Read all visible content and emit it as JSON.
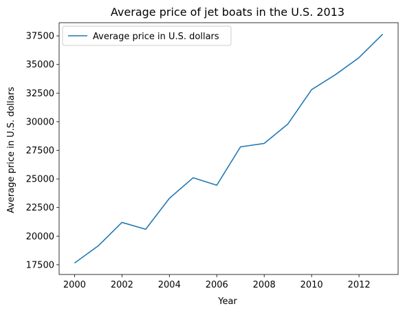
{
  "chart_data": {
    "type": "line",
    "title": "Average price of jet boats in the U.S. 2013",
    "xlabel": "Year",
    "ylabel": "Average price in U.S. dollars",
    "x": [
      2000,
      2001,
      2002,
      2003,
      2004,
      2005,
      2006,
      2007,
      2008,
      2009,
      2010,
      2011,
      2012,
      2013
    ],
    "series": [
      {
        "name": "Average price in U.S. dollars",
        "color": "#1f77b4",
        "values": [
          17650,
          19150,
          21200,
          20600,
          23300,
          25100,
          24450,
          27800,
          28100,
          29800,
          32800,
          34100,
          35600,
          37650
        ]
      }
    ],
    "xlim": [
      1999.35,
      2013.65
    ],
    "ylim": [
      16650,
      38650
    ],
    "xticks": [
      2000,
      2002,
      2004,
      2006,
      2008,
      2010,
      2012
    ],
    "yticks": [
      17500,
      20000,
      22500,
      25000,
      27500,
      30000,
      32500,
      35000,
      37500
    ],
    "grid": false,
    "legend_position": "top-left"
  }
}
